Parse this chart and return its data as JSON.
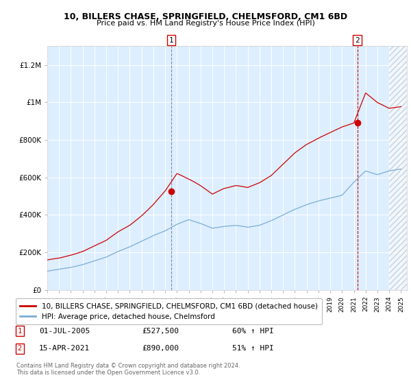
{
  "title1": "10, BILLERS CHASE, SPRINGFIELD, CHELMSFORD, CM1 6BD",
  "title2": "Price paid vs. HM Land Registry's House Price Index (HPI)",
  "plot_bg": "#ddeeff",
  "line1_color": "#cc0000",
  "line2_color": "#7aadd4",
  "ylim_min": 0,
  "ylim_max": 1300000,
  "yticks": [
    0,
    200000,
    400000,
    600000,
    800000,
    1000000,
    1200000
  ],
  "ytick_labels": [
    "£0",
    "£200K",
    "£400K",
    "£600K",
    "£800K",
    "£1M",
    "£1.2M"
  ],
  "legend1": "10, BILLERS CHASE, SPRINGFIELD, CHELMSFORD, CM1 6BD (detached house)",
  "legend2": "HPI: Average price, detached house, Chelmsford",
  "ann1_text": "01-JUL-2005",
  "ann1_price": "£527,500",
  "ann1_hpi": "60% ↑ HPI",
  "ann2_text": "15-APR-2021",
  "ann2_price": "£890,000",
  "ann2_hpi": "51% ↑ HPI",
  "footer1": "Contains HM Land Registry data © Crown copyright and database right 2024.",
  "footer2": "This data is licensed under the Open Government Licence v3.0.",
  "xmin": 1995.0,
  "xmax": 2025.5,
  "ann1_x": 2005.5,
  "ann1_y": 527500,
  "ann2_x": 2021.29,
  "ann2_y": 890000,
  "hatch_start": 2024.0,
  "hpi_anchors_years": [
    1995,
    1996,
    1997,
    1998,
    1999,
    2000,
    2001,
    2002,
    2003,
    2004,
    2005,
    2006,
    2007,
    2008,
    2009,
    2010,
    2011,
    2012,
    2013,
    2014,
    2015,
    2016,
    2017,
    2018,
    2019,
    2020,
    2021,
    2022,
    2023,
    2024,
    2025
  ],
  "hpi_anchors_vals": [
    100000,
    110000,
    120000,
    135000,
    155000,
    175000,
    205000,
    230000,
    260000,
    290000,
    315000,
    350000,
    375000,
    355000,
    330000,
    340000,
    345000,
    335000,
    345000,
    370000,
    400000,
    430000,
    455000,
    475000,
    490000,
    505000,
    575000,
    635000,
    615000,
    635000,
    645000
  ],
  "prop_anchors_years": [
    1995,
    1996,
    1997,
    1998,
    1999,
    2000,
    2001,
    2002,
    2003,
    2004,
    2005,
    2006,
    2007,
    2008,
    2009,
    2010,
    2011,
    2012,
    2013,
    2014,
    2015,
    2016,
    2017,
    2018,
    2019,
    2020,
    2021,
    2022,
    2023,
    2024,
    2025
  ],
  "prop_anchors_vals": [
    160000,
    170000,
    185000,
    205000,
    235000,
    265000,
    310000,
    345000,
    395000,
    455000,
    527500,
    620000,
    590000,
    555000,
    510000,
    540000,
    555000,
    545000,
    570000,
    610000,
    670000,
    730000,
    775000,
    810000,
    840000,
    870000,
    890000,
    1050000,
    1000000,
    970000,
    980000
  ]
}
